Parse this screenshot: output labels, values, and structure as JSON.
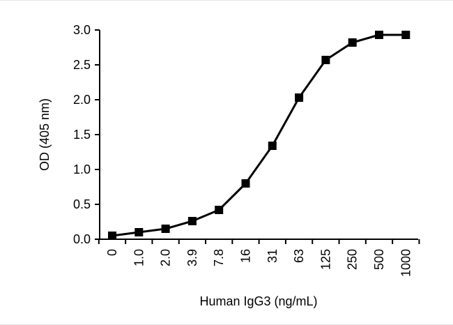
{
  "chart_data": {
    "type": "line",
    "title": "",
    "xlabel": "Human IgG3 (ng/mL)",
    "ylabel": "OD (405 nm)",
    "categories": [
      "0",
      "1.0",
      "2.0",
      "3.9",
      "7.8",
      "16",
      "31",
      "63",
      "125",
      "250",
      "500",
      "1000"
    ],
    "values": [
      0.05,
      0.1,
      0.15,
      0.26,
      0.42,
      0.8,
      1.34,
      2.03,
      2.57,
      2.82,
      2.93,
      2.93
    ],
    "ylim": [
      0.0,
      3.0
    ],
    "yticks": [
      "0.0",
      "0.5",
      "1.0",
      "1.5",
      "2.0",
      "2.5",
      "3.0"
    ],
    "grid": false,
    "marker": "square",
    "line_color": "#000000",
    "marker_color": "#000000"
  }
}
